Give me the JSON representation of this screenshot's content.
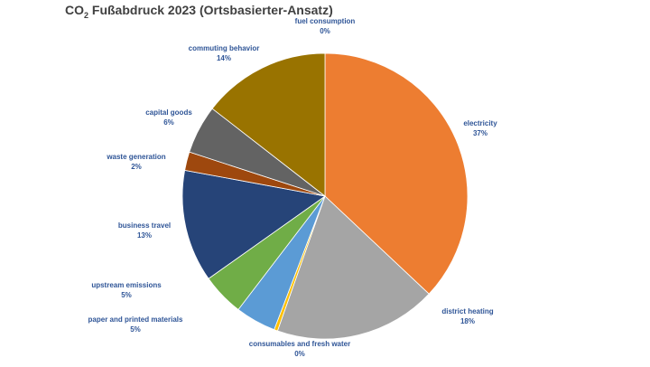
{
  "chart_data": {
    "type": "pie",
    "title_main": "CO",
    "title_sub": "2",
    "title_rest": " Fußabdruck 2023 (Ortsbasierter-Ansatz)",
    "slices": [
      {
        "name": "electricity",
        "label": "37%",
        "value": 37.0,
        "color": "#ed7d31"
      },
      {
        "name": "district heating",
        "label": "18%",
        "value": 18.4,
        "color": "#a5a5a5"
      },
      {
        "name": "consumables and fresh water",
        "label": "0%",
        "value": 0.4,
        "color": "#ffc000"
      },
      {
        "name": "paper and printed materials",
        "label": "5%",
        "value": 4.6,
        "color": "#5b9bd5"
      },
      {
        "name": "upstream emissions",
        "label": "5%",
        "value": 4.8,
        "color": "#70ad47"
      },
      {
        "name": "business travel",
        "label": "13%",
        "value": 12.7,
        "color": "#264478"
      },
      {
        "name": "waste generation",
        "label": "2%",
        "value": 2.1,
        "color": "#9e480e"
      },
      {
        "name": "capital goods",
        "label": "6%",
        "value": 5.5,
        "color": "#636363"
      },
      {
        "name": "commuting behavior",
        "label": "14%",
        "value": 14.5,
        "color": "#997300"
      },
      {
        "name": "fuel consumption",
        "label": "0%",
        "value": 0.0,
        "color": "#43682b"
      }
    ]
  }
}
